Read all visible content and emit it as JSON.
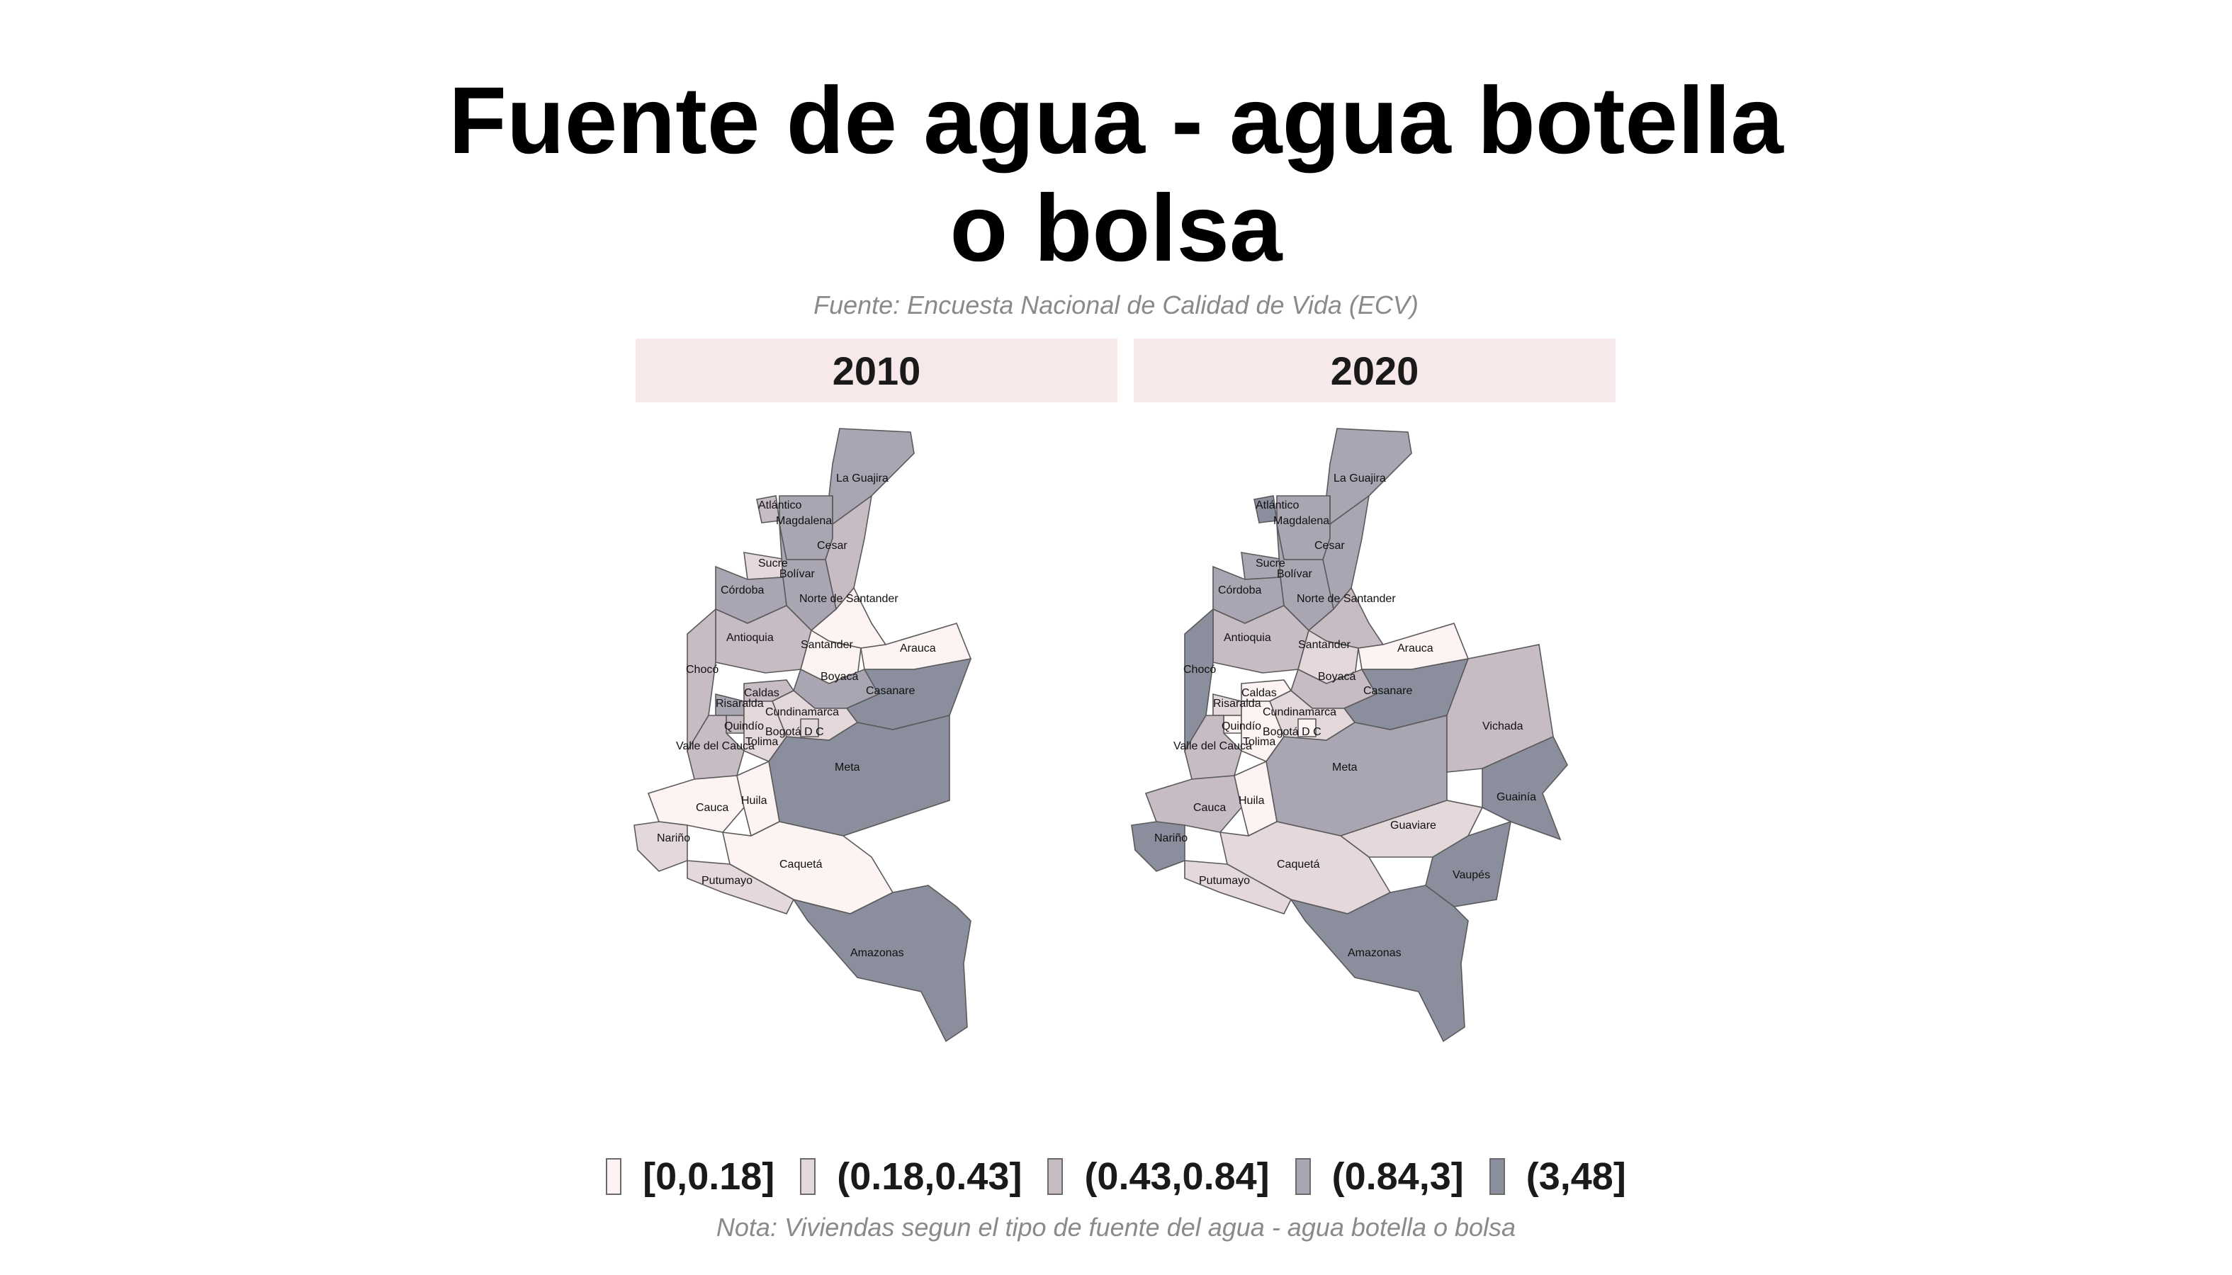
{
  "title": {
    "line1": "Fuente de agua - agua botella",
    "line2": "o bolsa"
  },
  "subtitle": "Fuente: Encuesta Nacional de Calidad de Vida (ECV)",
  "panels": [
    "2010",
    "2020"
  ],
  "palette": {
    "0": "#fdf3f3",
    "1": "#e4d8db",
    "2": "#c7bcc4",
    "3": "#aaa5b3",
    "4": "#8b8f9d"
  },
  "legend": {
    "items": [
      {
        "label": "[0,0.18]",
        "class": 0
      },
      {
        "label": "(0.18,0.43]",
        "class": 1
      },
      {
        "label": "(0.43,0.84]",
        "class": 2
      },
      {
        "label": "(0.84,3]",
        "class": 3
      },
      {
        "label": "(3,48]",
        "class": 4
      }
    ]
  },
  "map_data": {
    "type": "choropleth",
    "variable_classes": [
      "[0,0.18]",
      "(0.18,0.43]",
      "(0.43,0.84]",
      "(0.84,3]",
      "(3,48]"
    ],
    "departments": [
      {
        "name": "La Guajira",
        "class_2010": 3,
        "class_2020": 3
      },
      {
        "name": "Atlántico",
        "class_2010": 2,
        "class_2020": 4
      },
      {
        "name": "Magdalena",
        "class_2010": 3,
        "class_2020": 3
      },
      {
        "name": "Cesar",
        "class_2010": 2,
        "class_2020": 3
      },
      {
        "name": "Sucre",
        "class_2010": 1,
        "class_2020": 3
      },
      {
        "name": "Bolívar",
        "class_2010": 3,
        "class_2020": 3
      },
      {
        "name": "Córdoba",
        "class_2010": 3,
        "class_2020": 3
      },
      {
        "name": "Norte de Santander",
        "class_2010": 0,
        "class_2020": 2
      },
      {
        "name": "Antioquia",
        "class_2010": 2,
        "class_2020": 2
      },
      {
        "name": "Santander",
        "class_2010": 0,
        "class_2020": 1
      },
      {
        "name": "Arauca",
        "class_2010": 0,
        "class_2020": 0
      },
      {
        "name": "Chocó",
        "class_2010": 2,
        "class_2020": 4
      },
      {
        "name": "Boyacá",
        "class_2010": 3,
        "class_2020": 2
      },
      {
        "name": "Casanare",
        "class_2010": 4,
        "class_2020": 4
      },
      {
        "name": "Caldas",
        "class_2010": 2,
        "class_2020": 0
      },
      {
        "name": "Risaralda",
        "class_2010": 3,
        "class_2020": 1
      },
      {
        "name": "Cundinamarca",
        "class_2010": 1,
        "class_2020": 1
      },
      {
        "name": "Quindío",
        "class_2010": 2,
        "class_2020": 0
      },
      {
        "name": "Bogotá D C",
        "class_2010": 1,
        "class_2020": 0
      },
      {
        "name": "Tolima",
        "class_2010": 1,
        "class_2020": 0
      },
      {
        "name": "Valle del Cauca",
        "class_2010": 2,
        "class_2020": 2
      },
      {
        "name": "Meta",
        "class_2010": 4,
        "class_2020": 3
      },
      {
        "name": "Vichada",
        "class_2010": null,
        "class_2020": 2
      },
      {
        "name": "Guainía",
        "class_2010": null,
        "class_2020": 4
      },
      {
        "name": "Cauca",
        "class_2010": 0,
        "class_2020": 2
      },
      {
        "name": "Huila",
        "class_2010": 0,
        "class_2020": 0
      },
      {
        "name": "Nariño",
        "class_2010": 1,
        "class_2020": 4
      },
      {
        "name": "Guaviare",
        "class_2010": null,
        "class_2020": 1
      },
      {
        "name": "Caquetá",
        "class_2010": 0,
        "class_2020": 1
      },
      {
        "name": "Putumayo",
        "class_2010": 1,
        "class_2020": 1
      },
      {
        "name": "Vaupés",
        "class_2010": null,
        "class_2020": 4
      },
      {
        "name": "Amazonas",
        "class_2010": 4,
        "class_2020": 4
      }
    ]
  },
  "note": "Nota: Viviendas segun el tipo de fuente del agua - agua botella o bolsa"
}
